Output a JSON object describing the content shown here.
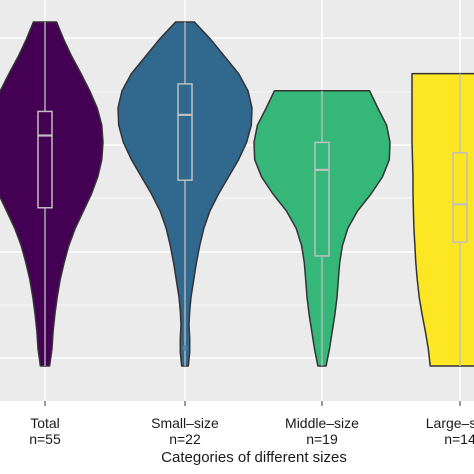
{
  "chart_data": {
    "type": "violin",
    "title": "",
    "xlabel": "Categories of different sizes",
    "ylabel": "",
    "grid": true,
    "y_scale": "unlabeled (relative 0-1)",
    "colors": {
      "panel_background": "#ebebeb",
      "gridline": "#ffffff",
      "violin_outline": "#333333",
      "box": "#bfbfbf"
    },
    "categories": [
      {
        "name": "Total",
        "label_line1": "Total",
        "label_line2": "n=55",
        "fill": "#440154",
        "ymin": 0.0,
        "ymax": 1.0,
        "box": {
          "q1": 0.46,
          "median": 0.67,
          "q3": 0.74,
          "whisker_low": 0.0,
          "whisker_high": 1.0
        },
        "density": [
          [
            0.0,
            0.08
          ],
          [
            0.05,
            0.12
          ],
          [
            0.1,
            0.14
          ],
          [
            0.15,
            0.17
          ],
          [
            0.2,
            0.21
          ],
          [
            0.25,
            0.26
          ],
          [
            0.3,
            0.33
          ],
          [
            0.35,
            0.41
          ],
          [
            0.4,
            0.52
          ],
          [
            0.45,
            0.66
          ],
          [
            0.5,
            0.8
          ],
          [
            0.55,
            0.91
          ],
          [
            0.6,
            0.98
          ],
          [
            0.65,
            1.0
          ],
          [
            0.7,
            0.98
          ],
          [
            0.75,
            0.9
          ],
          [
            0.8,
            0.77
          ],
          [
            0.85,
            0.62
          ],
          [
            0.9,
            0.46
          ],
          [
            0.95,
            0.32
          ],
          [
            1.0,
            0.2
          ]
        ]
      },
      {
        "name": "Small-size",
        "label_line1": "Small–size",
        "label_line2": "n=22",
        "fill": "#31688e",
        "ymin": 0.0,
        "ymax": 1.0,
        "box": {
          "q1": 0.54,
          "median": 0.73,
          "q3": 0.82,
          "whisker_low": 0.0,
          "whisker_high": 1.0
        },
        "density": [
          [
            0.0,
            0.05
          ],
          [
            0.04,
            0.07
          ],
          [
            0.08,
            0.07
          ],
          [
            0.12,
            0.06
          ],
          [
            0.16,
            0.07
          ],
          [
            0.2,
            0.09
          ],
          [
            0.25,
            0.13
          ],
          [
            0.3,
            0.17
          ],
          [
            0.35,
            0.22
          ],
          [
            0.4,
            0.28
          ],
          [
            0.45,
            0.37
          ],
          [
            0.5,
            0.5
          ],
          [
            0.55,
            0.65
          ],
          [
            0.6,
            0.8
          ],
          [
            0.65,
            0.92
          ],
          [
            0.7,
            0.99
          ],
          [
            0.75,
            1.0
          ],
          [
            0.8,
            0.94
          ],
          [
            0.85,
            0.8
          ],
          [
            0.9,
            0.59
          ],
          [
            0.95,
            0.38
          ],
          [
            1.0,
            0.14
          ]
        ]
      },
      {
        "name": "Middle-size",
        "label_line1": "Middle–size",
        "label_line2": "n=19",
        "fill": "#35b779",
        "ymin": 0.0,
        "ymax": 0.8,
        "box": {
          "q1": 0.32,
          "median": 0.57,
          "q3": 0.65,
          "whisker_low": 0.0,
          "whisker_high": 0.8
        },
        "density": [
          [
            0.0,
            0.06
          ],
          [
            0.05,
            0.11
          ],
          [
            0.1,
            0.15
          ],
          [
            0.15,
            0.19
          ],
          [
            0.2,
            0.22
          ],
          [
            0.25,
            0.24
          ],
          [
            0.3,
            0.26
          ],
          [
            0.35,
            0.3
          ],
          [
            0.4,
            0.38
          ],
          [
            0.45,
            0.52
          ],
          [
            0.5,
            0.72
          ],
          [
            0.55,
            0.89
          ],
          [
            0.6,
            0.99
          ],
          [
            0.65,
            1.0
          ],
          [
            0.7,
            0.95
          ],
          [
            0.75,
            0.82
          ],
          [
            0.8,
            0.7
          ]
        ]
      },
      {
        "name": "Large-size",
        "label_line1": "Large–size",
        "label_line2": "n=14",
        "fill": "#fde725",
        "ymin": 0.0,
        "ymax": 0.85,
        "box": {
          "q1": 0.36,
          "median": 0.47,
          "q3": 0.62,
          "whisker_low": 0.0,
          "whisker_high": 0.85
        },
        "density": [
          [
            0.0,
            0.62
          ],
          [
            0.05,
            0.66
          ],
          [
            0.1,
            0.72
          ],
          [
            0.15,
            0.79
          ],
          [
            0.2,
            0.85
          ],
          [
            0.25,
            0.89
          ],
          [
            0.3,
            0.92
          ],
          [
            0.35,
            0.94
          ],
          [
            0.4,
            0.96
          ],
          [
            0.45,
            0.97
          ],
          [
            0.5,
            0.98
          ],
          [
            0.55,
            0.98
          ],
          [
            0.6,
            0.99
          ],
          [
            0.65,
            1.0
          ],
          [
            0.7,
            1.0
          ],
          [
            0.75,
            1.0
          ],
          [
            0.8,
            1.0
          ],
          [
            0.85,
            1.0
          ]
        ]
      }
    ],
    "outliers": [
      {
        "category": "Small-size",
        "y": 0.0
      }
    ]
  }
}
